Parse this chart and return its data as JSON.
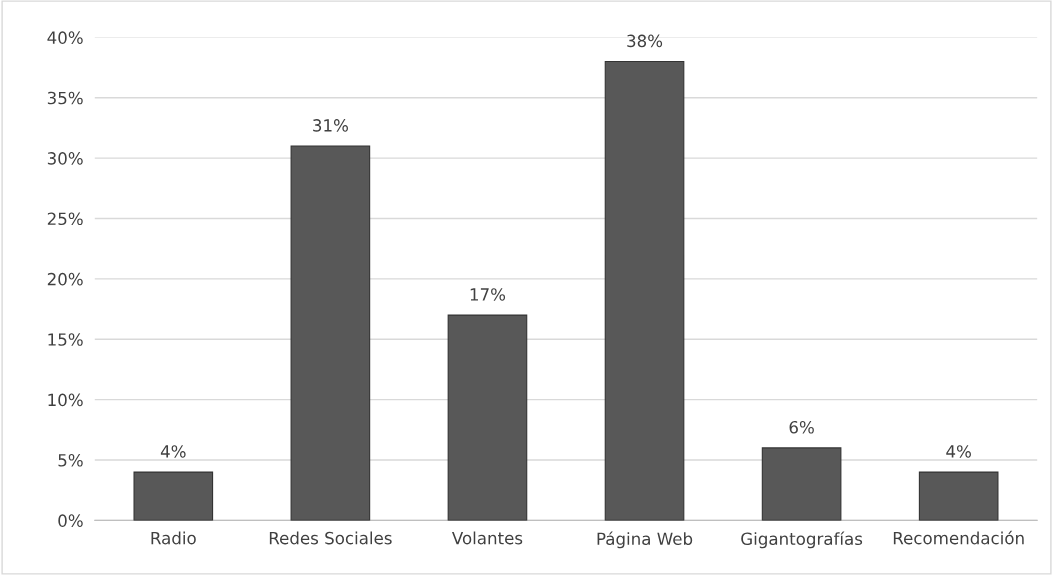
{
  "chart_data": {
    "type": "bar",
    "categories": [
      "Radio",
      "Redes Sociales",
      "Volantes",
      "Página Web",
      "Gigantografías",
      "Recomendación"
    ],
    "values": [
      4,
      31,
      17,
      38,
      6,
      4
    ],
    "value_labels": [
      "4%",
      "31%",
      "17%",
      "38%",
      "6%",
      "4%"
    ],
    "color": "#585858",
    "ylim": [
      0,
      40
    ],
    "yticks": [
      {
        "value": 0,
        "label": "0%"
      },
      {
        "value": 5,
        "label": "5%"
      },
      {
        "value": 10,
        "label": "10%"
      },
      {
        "value": 15,
        "label": "15%"
      },
      {
        "value": 20,
        "label": "20%"
      },
      {
        "value": 25,
        "label": "25%"
      },
      {
        "value": 30,
        "label": "30%"
      },
      {
        "value": 35,
        "label": "35%"
      },
      {
        "value": 40,
        "label": "40%"
      }
    ],
    "grid": "y"
  }
}
